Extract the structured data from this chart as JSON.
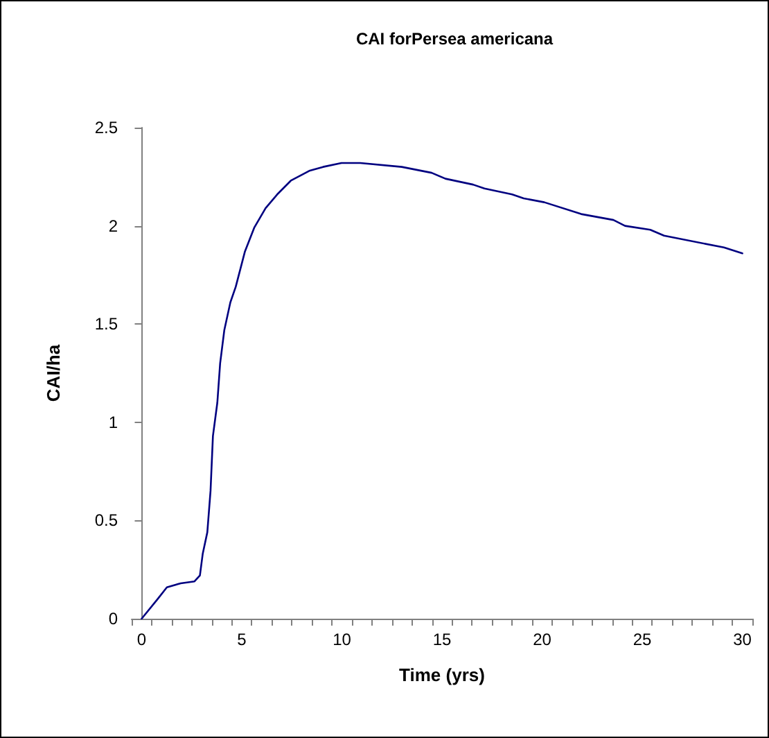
{
  "chart_data": {
    "type": "line",
    "title": "CAI forPersea americana",
    "xlabel": "Time (yrs)",
    "ylabel": "CAI/ha",
    "x": [
      0,
      0.8,
      1.26,
      1.95,
      2.64,
      2.91,
      3.05,
      3.28,
      3.44,
      3.56,
      3.78,
      3.92,
      4.13,
      4.43,
      4.7,
      5.16,
      5.62,
      6.19,
      6.77,
      7.45,
      8.37,
      9.06,
      9.98,
      10.92,
      12.99,
      14.48,
      15.17,
      16.55,
      17.12,
      18.5,
      19.08,
      20.11,
      21.95,
      23.56,
      24.14,
      25.4,
      26.09,
      29.08,
      30
    ],
    "series": [
      {
        "color": "#000080",
        "values": [
          0,
          0.1,
          0.16,
          0.18,
          0.19,
          0.22,
          0.33,
          0.44,
          0.65,
          0.93,
          1.1,
          1.3,
          1.47,
          1.61,
          1.69,
          1.87,
          1.99,
          2.09,
          2.16,
          2.23,
          2.28,
          2.3,
          2.32,
          2.32,
          2.3,
          2.27,
          2.24,
          2.21,
          2.19,
          2.16,
          2.14,
          2.12,
          2.06,
          2.03,
          2,
          1.98,
          1.95,
          1.89,
          1.86
        ]
      }
    ],
    "xlim": [
      -0.5,
      30.5
    ],
    "xticks": [
      0,
      5,
      10,
      15,
      20,
      25,
      30,
      {
        "value": -0.5,
        "label": null
      },
      {
        "value": 0.5,
        "label": null
      },
      {
        "value": 1.5,
        "label": null
      },
      {
        "value": 2.5,
        "label": null
      },
      {
        "value": 3.5,
        "label": null
      },
      {
        "value": 4.5,
        "label": null
      },
      {
        "value": 5.5,
        "label": null
      },
      {
        "value": 6.5,
        "label": null
      },
      {
        "value": 7.5,
        "label": null
      },
      {
        "value": 8.5,
        "label": null
      },
      {
        "value": 9.5,
        "label": null
      },
      {
        "value": 10.5,
        "label": null
      },
      {
        "value": 11.5,
        "label": null
      },
      {
        "value": 12.5,
        "label": null
      },
      {
        "value": 13.5,
        "label": null
      },
      {
        "value": 14.5,
        "label": null
      },
      {
        "value": 15.5,
        "label": null
      },
      {
        "value": 16.5,
        "label": null
      },
      {
        "value": 17.5,
        "label": null
      },
      {
        "value": 18.5,
        "label": null
      },
      {
        "value": 19.5,
        "label": null
      },
      {
        "value": 20.5,
        "label": null
      },
      {
        "value": 21.5,
        "label": null
      },
      {
        "value": 22.5,
        "label": null
      },
      {
        "value": 23.5,
        "label": null
      },
      {
        "value": 24.5,
        "label": null
      },
      {
        "value": 25.5,
        "label": null
      },
      {
        "value": 26.5,
        "label": null
      },
      {
        "value": 27.5,
        "label": null
      },
      {
        "value": 28.5,
        "label": null
      },
      {
        "value": 29.5,
        "label": null
      },
      {
        "value": 30.5,
        "label": null
      }
    ],
    "ylim": [
      0,
      2.5
    ],
    "yticks": [
      0,
      0.5,
      1,
      1.5,
      2,
      2.5
    ],
    "grid": false,
    "marker": "none",
    "line_style": "solid"
  }
}
